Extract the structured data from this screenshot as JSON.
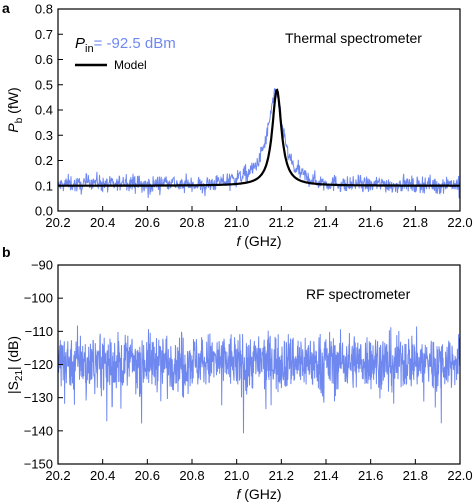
{
  "chart_data": [
    {
      "panel_label": "a",
      "type": "line",
      "annotation": "Thermal spectrometer",
      "legend": {
        "pin_label": "P",
        "pin_sub": "in",
        "pin_value": "= -92.5 dBm",
        "model_label": "Model",
        "placement": "top-left"
      },
      "xlabel": "f",
      "xlabel_unit": " (GHz)",
      "ylabel": "P",
      "ylabel_sub": "b",
      "ylabel_unit": " (fW)",
      "xlim": [
        20.2,
        22.0
      ],
      "ylim": [
        0.0,
        0.8
      ],
      "xticks": [
        "20.2",
        "20.4",
        "20.6",
        "20.8",
        "21.0",
        "21.2",
        "21.4",
        "21.6",
        "21.8",
        "22.0"
      ],
      "yticks": [
        "0.0",
        "0.1",
        "0.2",
        "0.3",
        "0.4",
        "0.5",
        "0.6",
        "0.7",
        "0.8"
      ],
      "series": [
        {
          "name": "P_in = -92.5 dBm",
          "style": "noisy measured trace",
          "x": [
            20.2,
            20.25,
            20.3,
            20.35,
            20.4,
            20.45,
            20.5,
            20.55,
            20.6,
            20.65,
            20.7,
            20.75,
            20.8,
            20.85,
            20.9,
            20.95,
            21.0,
            21.05,
            21.08,
            21.1,
            21.12,
            21.14,
            21.16,
            21.17,
            21.18,
            21.19,
            21.2,
            21.22,
            21.24,
            21.26,
            21.3,
            21.35,
            21.4,
            21.45,
            21.5,
            21.55,
            21.6,
            21.65,
            21.7,
            21.75,
            21.8,
            21.85,
            21.9,
            21.95,
            22.0
          ],
          "y": [
            0.1,
            0.11,
            0.1,
            0.12,
            0.11,
            0.1,
            0.12,
            0.11,
            0.1,
            0.11,
            0.12,
            0.1,
            0.11,
            0.1,
            0.11,
            0.12,
            0.13,
            0.15,
            0.17,
            0.2,
            0.25,
            0.32,
            0.42,
            0.46,
            0.47,
            0.44,
            0.36,
            0.26,
            0.2,
            0.17,
            0.14,
            0.12,
            0.11,
            0.11,
            0.1,
            0.11,
            0.1,
            0.11,
            0.1,
            0.11,
            0.1,
            0.11,
            0.1,
            0.11,
            0.1
          ],
          "noise_amplitude": 0.03
        },
        {
          "name": "Model",
          "style": "lorentzian fit",
          "center": 21.18,
          "half_width": 0.025,
          "baseline": 0.1,
          "peak": 0.48
        }
      ]
    },
    {
      "panel_label": "b",
      "type": "line",
      "annotation": "RF spectrometer",
      "xlabel": "f",
      "xlabel_unit": " (GHz)",
      "ylabel": "|S",
      "ylabel_sub": "21",
      "ylabel_unit": "| (dB)",
      "xlim": [
        20.2,
        22.0
      ],
      "ylim": [
        -150,
        -90
      ],
      "xticks": [
        "20.2",
        "20.4",
        "20.6",
        "20.8",
        "21.0",
        "21.2",
        "21.4",
        "21.6",
        "21.8",
        "22.0"
      ],
      "yticks": [
        "-90",
        "-100",
        "-110",
        "-120",
        "-130",
        "-140",
        "-150"
      ],
      "series": [
        {
          "name": "|S21|",
          "style": "noise floor",
          "x": [
            20.2,
            22.0
          ],
          "y_mean": -119,
          "y_band": [
            -113,
            -125
          ],
          "y_min": -149,
          "y_max": -108
        }
      ]
    }
  ],
  "colors": {
    "data": "#6f88f0",
    "model": "#000000",
    "axes": "#000000",
    "legend_value": "#6f88f0"
  }
}
